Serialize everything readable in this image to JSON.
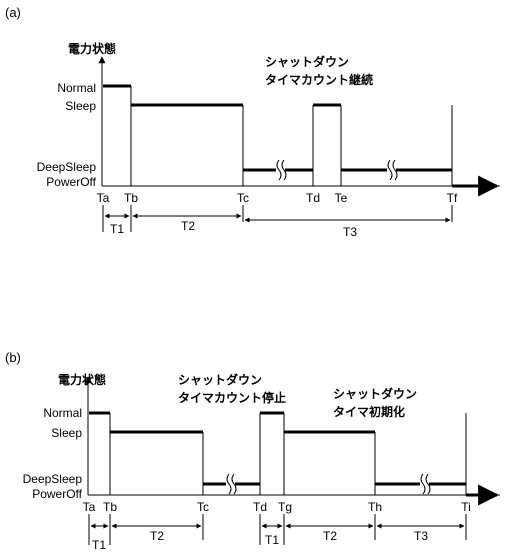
{
  "panel_a": {
    "label": "(a)",
    "y_axis_label": "電力状態",
    "state_levels": [
      "Normal",
      "Sleep",
      "DeepSleep",
      "PowerOff"
    ],
    "annotation": [
      "シャットダウン",
      "タイマカウント継続"
    ],
    "time_marks": [
      "Ta",
      "Tb",
      "Tc",
      "Td",
      "Te",
      "Tf"
    ],
    "intervals": [
      "T1",
      "T2",
      "T3"
    ]
  },
  "panel_b": {
    "label": "(b)",
    "y_axis_label": "電力状態",
    "state_levels": [
      "Normal",
      "Sleep",
      "DeepSleep",
      "PowerOff"
    ],
    "annotation_stop": [
      "シャットダウン",
      "タイマカウント停止"
    ],
    "annotation_init": [
      "シャットダウン",
      "タイマ初期化"
    ],
    "time_marks": [
      "Ta",
      "Tb",
      "Tc",
      "Td",
      "Tg",
      "Th",
      "Ti"
    ],
    "intervals": [
      "T1",
      "T2",
      "T1",
      "T2",
      "T3"
    ]
  }
}
